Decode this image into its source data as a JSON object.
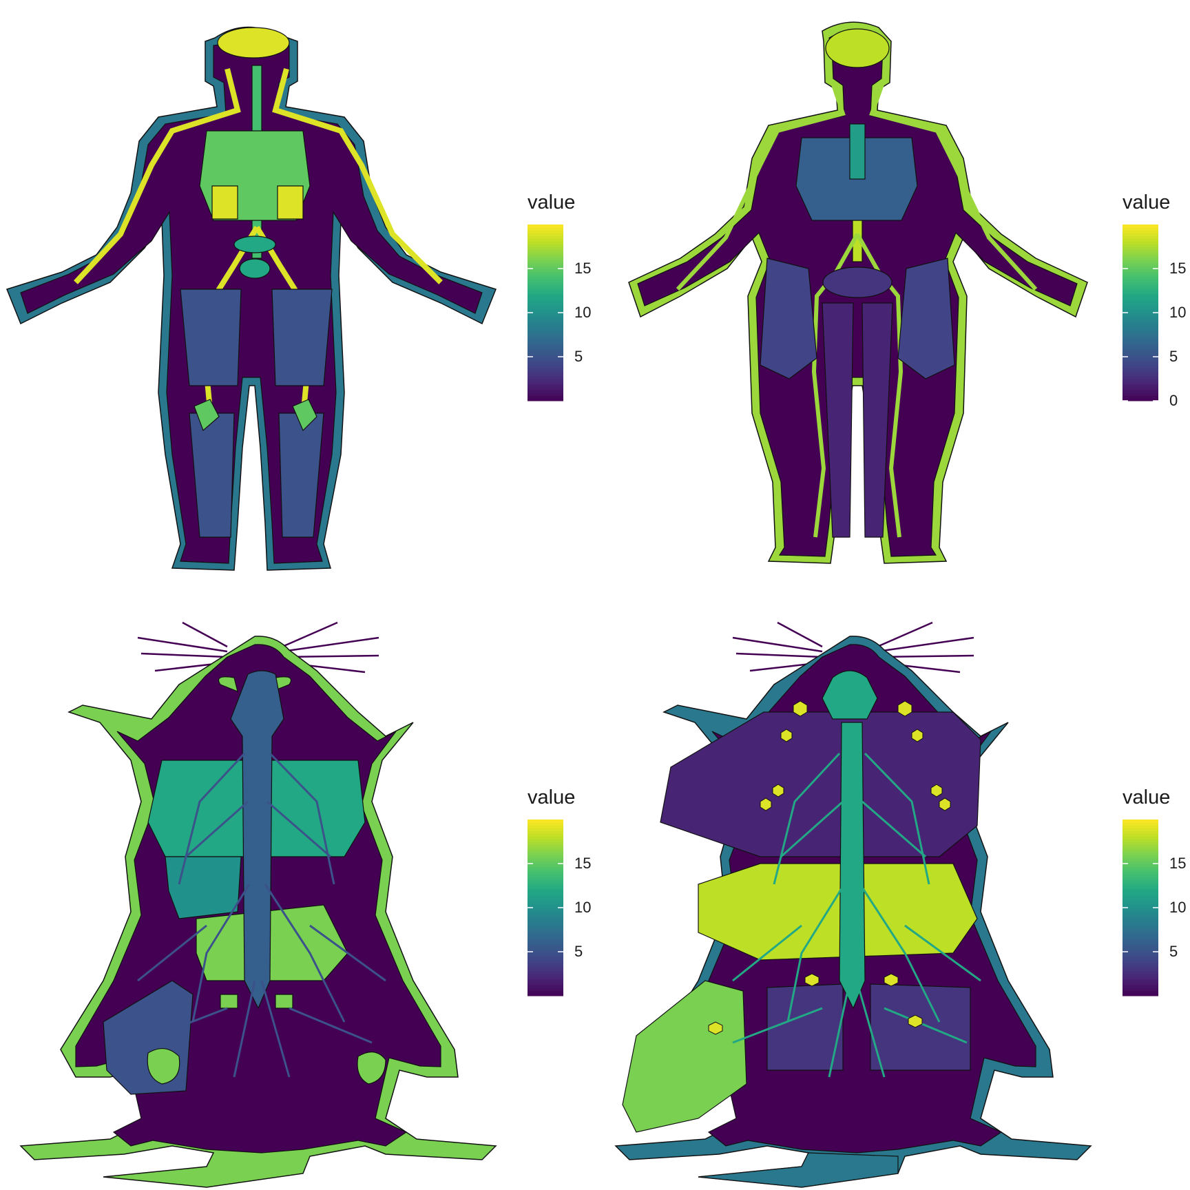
{
  "colors": {
    "v0": "#440154",
    "v2": "#482475",
    "v5": "#3b528b",
    "v8": "#2c728e",
    "v10": "#21918c",
    "v12": "#27ad81",
    "v15": "#5ec962",
    "v17": "#aadc32",
    "v19": "#fde725",
    "outline": "#111111"
  },
  "chart_data": [
    {
      "type": "heatmap",
      "subject": "human-male",
      "legend": {
        "title": "value",
        "ticks": [
          5,
          10,
          15
        ],
        "range": [
          0,
          20
        ],
        "colormap": "viridis",
        "placement": "right"
      },
      "regions": [
        {
          "name": "skin",
          "value": 8
        },
        {
          "name": "body",
          "value": 0
        },
        {
          "name": "brain",
          "value": 19
        },
        {
          "name": "spinal cord",
          "value": 14
        },
        {
          "name": "thoracic cavity",
          "value": 15
        },
        {
          "name": "kidneys",
          "value": 19
        },
        {
          "name": "blood vessels",
          "value": 19
        },
        {
          "name": "liver",
          "value": 12
        },
        {
          "name": "bladder",
          "value": 12
        },
        {
          "name": "upper legs",
          "value": 5
        },
        {
          "name": "lower legs",
          "value": 5
        },
        {
          "name": "knee glands",
          "value": 15
        }
      ]
    },
    {
      "type": "heatmap",
      "subject": "human-female",
      "legend": {
        "title": "value",
        "ticks": [
          0,
          5,
          10,
          15
        ],
        "range": [
          0,
          20
        ],
        "colormap": "viridis",
        "placement": "right"
      },
      "regions": [
        {
          "name": "skin",
          "value": 17
        },
        {
          "name": "body",
          "value": 0
        },
        {
          "name": "head",
          "value": 18
        },
        {
          "name": "spinal cord",
          "value": 18
        },
        {
          "name": "thoracic cavity",
          "value": 6
        },
        {
          "name": "esophagus",
          "value": 11
        },
        {
          "name": "blood vessels",
          "value": 17
        },
        {
          "name": "hips",
          "value": 4
        },
        {
          "name": "pelvis",
          "value": 3
        },
        {
          "name": "inner legs",
          "value": 2
        }
      ]
    },
    {
      "type": "heatmap",
      "subject": "mouse-male",
      "legend": {
        "title": "value",
        "ticks": [
          5,
          10,
          15
        ],
        "range": [
          0,
          20
        ],
        "colormap": "viridis",
        "placement": "right"
      },
      "regions": [
        {
          "name": "skin",
          "value": 16
        },
        {
          "name": "body",
          "value": 0
        },
        {
          "name": "spinal cord",
          "value": 6
        },
        {
          "name": "nerves",
          "value": 5
        },
        {
          "name": "thorax",
          "value": 12
        },
        {
          "name": "liver",
          "value": 10
        },
        {
          "name": "lower abdomen",
          "value": 16
        },
        {
          "name": "hind legs",
          "value": 5
        },
        {
          "name": "glands",
          "value": 16
        },
        {
          "name": "ears",
          "value": 16
        }
      ]
    },
    {
      "type": "heatmap",
      "subject": "mouse-female",
      "legend": {
        "title": "value",
        "ticks": [
          5,
          10,
          15
        ],
        "range": [
          0,
          20
        ],
        "colormap": "viridis",
        "placement": "right"
      },
      "regions": [
        {
          "name": "skin",
          "value": 8
        },
        {
          "name": "body",
          "value": 0
        },
        {
          "name": "brain",
          "value": 12
        },
        {
          "name": "spinal cord",
          "value": 12
        },
        {
          "name": "nerves",
          "value": 12
        },
        {
          "name": "thorax",
          "value": 2
        },
        {
          "name": "abdomen",
          "value": 18
        },
        {
          "name": "left hind leg",
          "value": 16
        },
        {
          "name": "right hind leg",
          "value": 3
        },
        {
          "name": "tail",
          "value": 8
        },
        {
          "name": "lymph nodes",
          "value": 19
        }
      ]
    }
  ]
}
